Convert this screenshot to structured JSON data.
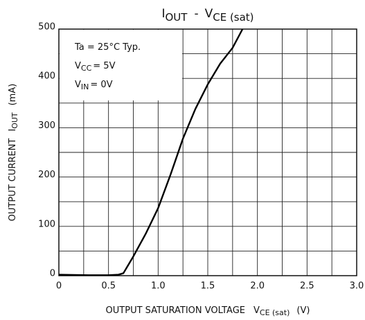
{
  "chart_data": {
    "type": "line",
    "title": [
      "I",
      "OUT",
      "-",
      "V",
      "CE (sat)"
    ],
    "x_label": [
      "OUTPUT SATURATION VOLTAGE",
      "V",
      "CE (sat)",
      "(V)"
    ],
    "y_label": [
      "OUTPUT CURRENT",
      "I",
      "OUT",
      "(mA)"
    ],
    "annotations": [
      [
        "Ta = 25°C Typ."
      ],
      [
        "V",
        "CC",
        "= 5V"
      ],
      [
        "V",
        "IN",
        "= 0V"
      ]
    ],
    "x": [
      0,
      0.3,
      0.5,
      0.6,
      0.65,
      0.75,
      0.875,
      1.0,
      1.125,
      1.25,
      1.375,
      1.5,
      1.625,
      1.75,
      1.85
    ],
    "series": [
      {
        "name": "IOUT",
        "color": "#000000",
        "values": [
          2,
          1,
          1,
          2,
          5,
          39,
          85,
          137,
          205,
          278,
          338,
          388,
          430,
          462,
          500
        ]
      }
    ],
    "xlim": [
      0,
      3.0
    ],
    "xticks": [
      0,
      0.5,
      {
        "value": 1,
        "label": "1.0"
      },
      1.5,
      {
        "value": 2,
        "label": "2.0"
      },
      2.5,
      {
        "value": 3,
        "label": "3.0"
      }
    ],
    "ylim": [
      0,
      500
    ],
    "yticks": [
      0,
      100,
      200,
      300,
      400,
      500
    ],
    "grid": true
  }
}
